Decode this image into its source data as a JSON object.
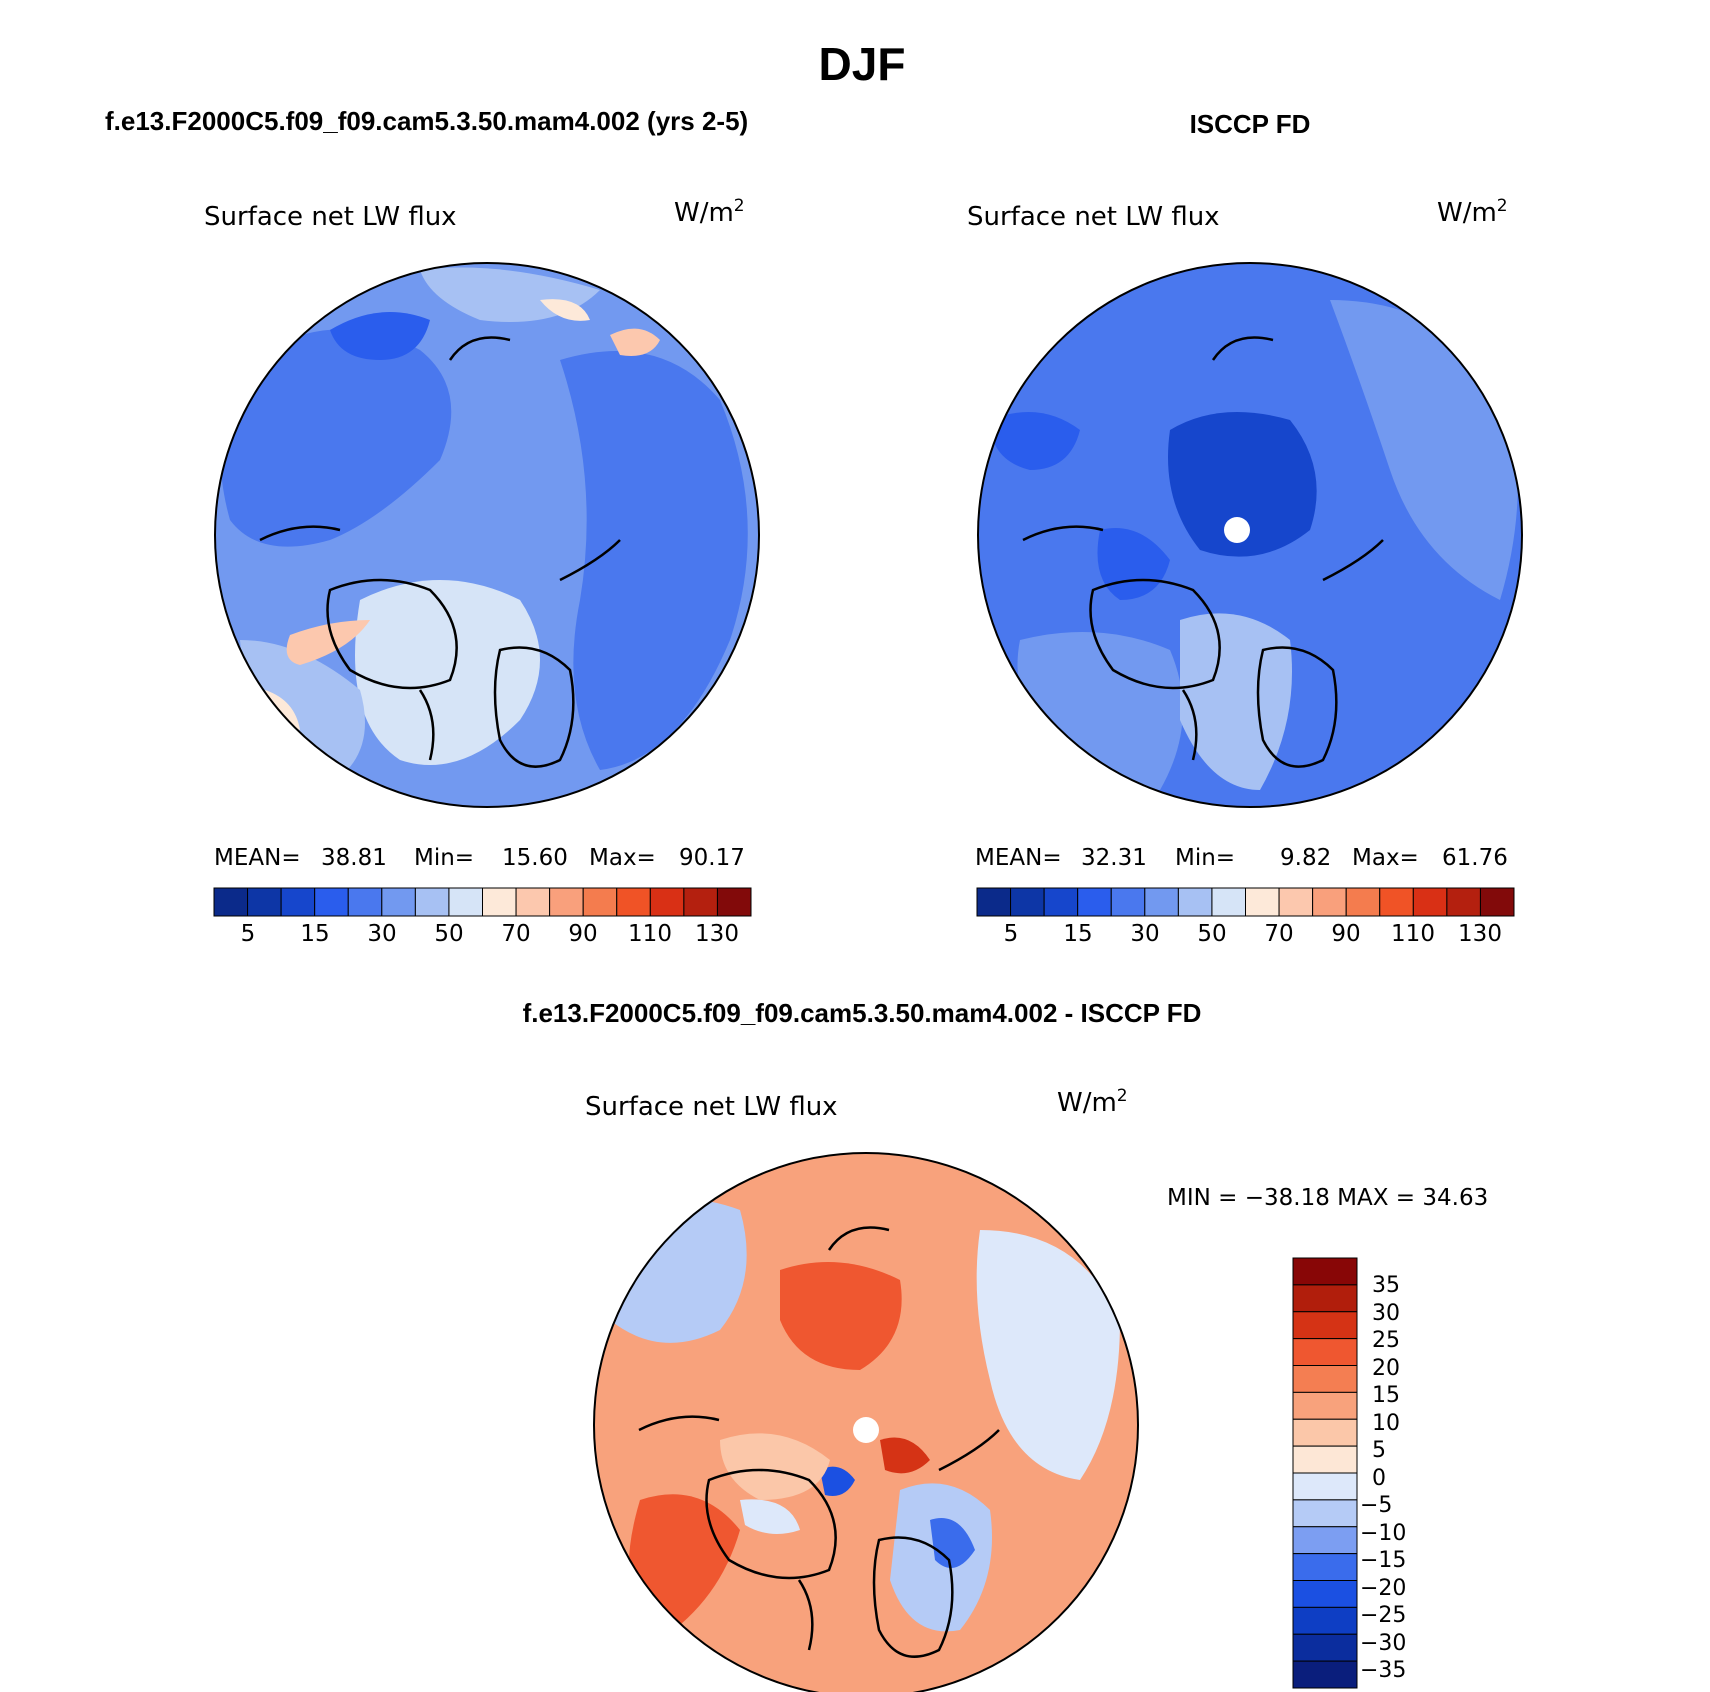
{
  "title": "DJF",
  "colors": {
    "seq": [
      "#0b2a8a",
      "#0d36a6",
      "#1646cc",
      "#2a5ded",
      "#4a78ee",
      "#7299f0",
      "#a7c1f3",
      "#d6e4f7",
      "#fde9d9",
      "#fcc8ae",
      "#f9a07c",
      "#f47c4e",
      "#f05326",
      "#d93015",
      "#b4200f",
      "#820a0a"
    ],
    "div": [
      "#0a1e7c",
      "#0b2d9e",
      "#0e3ec4",
      "#1b50e2",
      "#3a6cec",
      "#7c9ef2",
      "#b5cbf6",
      "#dde8fa",
      "#fde7d6",
      "#fbc7a9",
      "#f8a27c",
      "#f47e52",
      "#ef5730",
      "#d53315",
      "#b11e0c",
      "#880606"
    ],
    "ocean_a": "#7c9ef2",
    "land_a": "#4a78ee",
    "ocean_b": "#4a78ee",
    "land_b": "#3a66e8",
    "diff_ocean": "#f8a27c",
    "diff_land": "#fbc7a9"
  },
  "panels": [
    {
      "header": "f.e13.F2000C5.f09_f09.cam5.3.50.mam4.002 (yrs 2-5)",
      "variable": "Surface net LW flux",
      "units": "W/m",
      "units_sup": "2",
      "stats": {
        "mean_label": "MEAN=",
        "mean": "38.81",
        "min_label": "Min=",
        "min": "15.60",
        "max_label": "Max=",
        "max": "90.17"
      },
      "colorbar_labels": [
        "5",
        "15",
        "30",
        "50",
        "70",
        "90",
        "110",
        "130"
      ]
    },
    {
      "header": "ISCCP FD",
      "variable": "Surface net LW flux",
      "units": "W/m",
      "units_sup": "2",
      "stats": {
        "mean_label": "MEAN=",
        "mean": "32.31",
        "min_label": "Min=",
        "min": "9.82",
        "max_label": "Max=",
        "max": "61.76"
      },
      "colorbar_labels": [
        "5",
        "15",
        "30",
        "50",
        "70",
        "90",
        "110",
        "130"
      ]
    }
  ],
  "diff_panel": {
    "header": "f.e13.F2000C5.f09_f09.cam5.3.50.mam4.002 - ISCCP FD",
    "variable": "Surface net LW flux",
    "units": "W/m",
    "units_sup": "2",
    "minmax": "MIN = −38.18 MAX =  34.63",
    "colorbar_labels": [
      "35",
      "30",
      "25",
      "20",
      "15",
      "10",
      "5",
      "0",
      "−5",
      "−10",
      "−15",
      "−20",
      "−25",
      "−30",
      "−35"
    ]
  }
}
